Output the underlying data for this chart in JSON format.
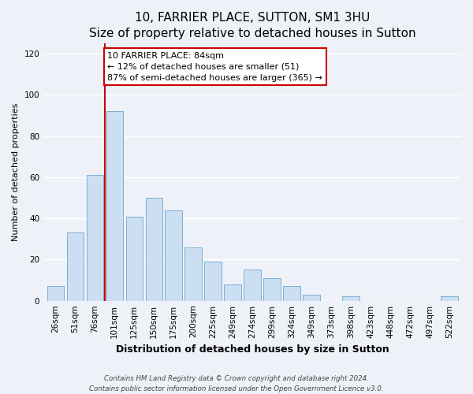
{
  "title": "10, FARRIER PLACE, SUTTON, SM1 3HU",
  "subtitle": "Size of property relative to detached houses in Sutton",
  "xlabel": "Distribution of detached houses by size in Sutton",
  "ylabel": "Number of detached properties",
  "bar_labels": [
    "26sqm",
    "51sqm",
    "76sqm",
    "101sqm",
    "125sqm",
    "150sqm",
    "175sqm",
    "200sqm",
    "225sqm",
    "249sqm",
    "274sqm",
    "299sqm",
    "324sqm",
    "349sqm",
    "373sqm",
    "398sqm",
    "423sqm",
    "448sqm",
    "472sqm",
    "497sqm",
    "522sqm"
  ],
  "bar_values": [
    7,
    33,
    61,
    92,
    41,
    50,
    44,
    26,
    19,
    8,
    15,
    11,
    7,
    3,
    0,
    2,
    0,
    0,
    0,
    0,
    2
  ],
  "bar_color": "#ccdff2",
  "bar_edge_color": "#7aafd4",
  "vline_x": 2.5,
  "vline_color": "#cc0000",
  "annotation_text": "10 FARRIER PLACE: 84sqm\n← 12% of detached houses are smaller (51)\n87% of semi-detached houses are larger (365) →",
  "annotation_box_color": "#ffffff",
  "annotation_box_edge_color": "#cc0000",
  "ylim": [
    0,
    125
  ],
  "yticks": [
    0,
    20,
    40,
    60,
    80,
    100,
    120
  ],
  "footer_line1": "Contains HM Land Registry data © Crown copyright and database right 2024.",
  "footer_line2": "Contains public sector information licensed under the Open Government Licence v3.0.",
  "background_color": "#eef2f8",
  "plot_bg_color": "#eef2f8",
  "grid_color": "#ffffff",
  "title_fontsize": 11,
  "subtitle_fontsize": 9,
  "xlabel_fontsize": 9,
  "ylabel_fontsize": 8,
  "tick_fontsize": 7.5,
  "annot_fontsize": 8
}
